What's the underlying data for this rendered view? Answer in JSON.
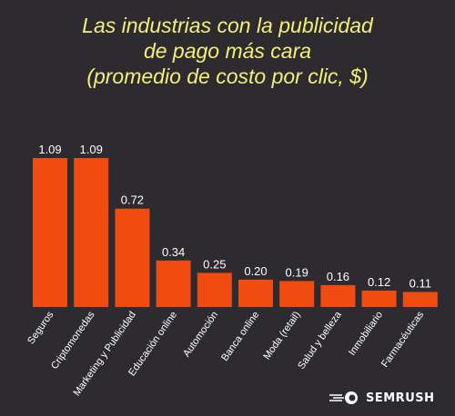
{
  "colors": {
    "background": "#2d2b30",
    "title": "#f4ef7a",
    "bar": "#f04c12",
    "text": "#ffffff",
    "label_box": "#ffffff"
  },
  "title_lines": [
    "Las industrias con la publicidad",
    "de pago más cara",
    "(promedio de costo por clic, $)"
  ],
  "chart_data": {
    "type": "bar",
    "title": "Las industrias con la publicidad de pago más cara (promedio de costo por clic, $)",
    "categories": [
      "Seguros",
      "Criptomonedas",
      "Marketing y Publicidad",
      "Educación online",
      "Automoción",
      "Banca online",
      "Moda (retail)",
      "Salud y belleza",
      "Inmobiliario",
      "Farmacéuticas"
    ],
    "values": [
      1.09,
      1.09,
      0.72,
      0.34,
      0.25,
      0.2,
      0.19,
      0.16,
      0.12,
      0.11
    ],
    "value_labels": [
      "1.09",
      "1.09",
      "0.72",
      "0.34",
      "0.25",
      "0.20",
      "0.19",
      "0.16",
      "0.12",
      "0.11"
    ],
    "xlabel": "",
    "ylabel": "",
    "ylim": [
      0,
      1.09
    ],
    "grid": false,
    "legend": "none"
  },
  "brand": {
    "icon": "semrush-fireball-icon",
    "name": "SEMRUSH"
  }
}
